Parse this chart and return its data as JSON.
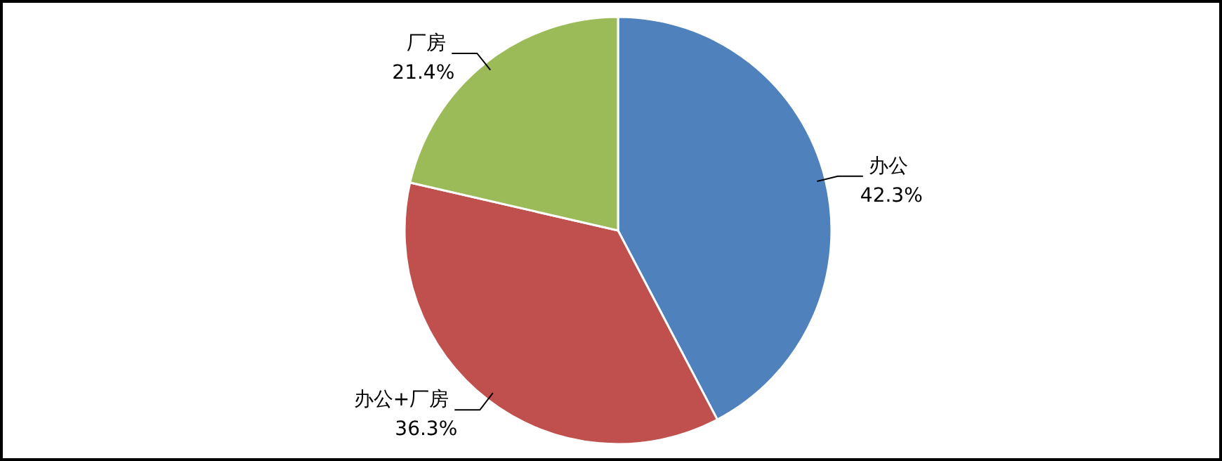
{
  "chart_data": {
    "type": "pie",
    "categories": [
      "办公",
      "办公+厂房",
      "厂房"
    ],
    "values": [
      42.3,
      36.3,
      21.4
    ],
    "colors": [
      "#4f81bd",
      "#c0504d",
      "#9bbb59"
    ],
    "value_labels": [
      "42.3%",
      "36.3%",
      "21.4%"
    ]
  }
}
